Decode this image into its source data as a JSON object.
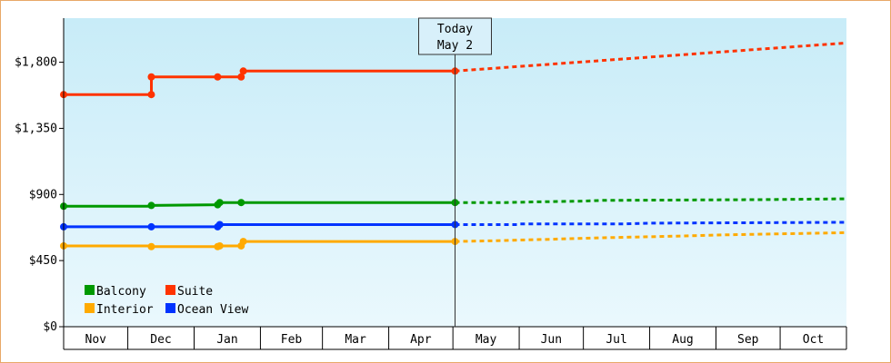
{
  "chart_data": {
    "type": "line",
    "title": "",
    "xlabel": "",
    "ylabel": "",
    "ylim": [
      0,
      2100
    ],
    "yticks": [
      0,
      450,
      900,
      1350,
      1800
    ],
    "ytick_labels": [
      "$0",
      "$450",
      "$900",
      "$1,350",
      "$1,800"
    ],
    "month_labels": [
      "Nov",
      "Dec",
      "Jan",
      "Feb",
      "Mar",
      "Apr",
      "May",
      "Jun",
      "Jul",
      "Aug",
      "Sep",
      "Oct"
    ],
    "x_range": [
      "2023-11-01",
      "2024-10-31"
    ],
    "today": {
      "line1": "Today",
      "line2": "May 2",
      "date": "2024-05-02"
    },
    "series": [
      {
        "name": "Suite",
        "color": "#ff3300",
        "history": [
          [
            "2023-11-01",
            1580
          ],
          [
            "2023-12-12",
            1580
          ],
          [
            "2023-12-12",
            1700
          ],
          [
            "2024-01-12",
            1700
          ],
          [
            "2024-01-23",
            1700
          ],
          [
            "2024-01-24",
            1740
          ],
          [
            "2024-05-02",
            1740
          ]
        ],
        "markers": [
          [
            "2023-11-01",
            1580
          ],
          [
            "2023-12-12",
            1580
          ],
          [
            "2023-12-12",
            1700
          ],
          [
            "2024-01-12",
            1700
          ],
          [
            "2024-01-23",
            1700
          ],
          [
            "2024-01-24",
            1740
          ],
          [
            "2024-05-02",
            1740
          ]
        ],
        "forecast": [
          [
            "2024-05-02",
            1740
          ],
          [
            "2024-10-31",
            1930
          ]
        ]
      },
      {
        "name": "Balcony",
        "color": "#009900",
        "history": [
          [
            "2023-11-01",
            820
          ],
          [
            "2023-12-12",
            820
          ],
          [
            "2023-12-12",
            825
          ],
          [
            "2024-01-12",
            830
          ],
          [
            "2024-01-13",
            845
          ],
          [
            "2024-01-23",
            845
          ],
          [
            "2024-05-02",
            845
          ]
        ],
        "markers": [
          [
            "2023-11-01",
            820
          ],
          [
            "2023-12-12",
            825
          ],
          [
            "2024-01-12",
            830
          ],
          [
            "2024-01-13",
            845
          ],
          [
            "2024-01-23",
            845
          ],
          [
            "2024-05-02",
            845
          ]
        ],
        "forecast": [
          [
            "2024-05-02",
            845
          ],
          [
            "2024-05-25",
            845
          ],
          [
            "2024-06-10",
            850
          ],
          [
            "2024-07-01",
            855
          ],
          [
            "2024-07-10",
            860
          ],
          [
            "2024-08-15",
            862
          ],
          [
            "2024-09-20",
            865
          ],
          [
            "2024-10-31",
            870
          ]
        ]
      },
      {
        "name": "Ocean View",
        "color": "#0033ff",
        "history": [
          [
            "2023-11-01",
            680
          ],
          [
            "2023-12-12",
            680
          ],
          [
            "2024-01-12",
            680
          ],
          [
            "2024-01-13",
            695
          ],
          [
            "2024-05-02",
            695
          ]
        ],
        "markers": [
          [
            "2023-11-01",
            680
          ],
          [
            "2023-12-12",
            680
          ],
          [
            "2024-01-12",
            680
          ],
          [
            "2024-01-13",
            695
          ],
          [
            "2024-05-02",
            695
          ]
        ],
        "forecast": [
          [
            "2024-05-02",
            695
          ],
          [
            "2024-05-31",
            695
          ],
          [
            "2024-06-01",
            700
          ],
          [
            "2024-07-20",
            700
          ],
          [
            "2024-08-01",
            705
          ],
          [
            "2024-10-31",
            710
          ]
        ]
      },
      {
        "name": "Interior",
        "color": "#ffaa00",
        "history": [
          [
            "2023-11-01",
            550
          ],
          [
            "2023-12-12",
            550
          ],
          [
            "2023-12-12",
            545
          ],
          [
            "2024-01-12",
            545
          ],
          [
            "2024-01-13",
            550
          ],
          [
            "2024-01-23",
            550
          ],
          [
            "2024-01-24",
            580
          ],
          [
            "2024-05-02",
            580
          ]
        ],
        "markers": [
          [
            "2023-11-01",
            550
          ],
          [
            "2023-12-12",
            545
          ],
          [
            "2024-01-12",
            545
          ],
          [
            "2024-01-13",
            550
          ],
          [
            "2024-01-23",
            550
          ],
          [
            "2024-01-24",
            580
          ],
          [
            "2024-05-02",
            580
          ]
        ],
        "forecast": [
          [
            "2024-05-02",
            580
          ],
          [
            "2024-05-20",
            585
          ],
          [
            "2024-06-15",
            595
          ],
          [
            "2024-07-10",
            605
          ],
          [
            "2024-08-10",
            615
          ],
          [
            "2024-09-05",
            625
          ],
          [
            "2024-10-31",
            640
          ]
        ]
      }
    ],
    "legend": {
      "placement": "bottom-left",
      "items": [
        {
          "label": "Balcony",
          "color": "#009900"
        },
        {
          "label": "Suite",
          "color": "#ff3300"
        },
        {
          "label": "Interior",
          "color": "#ffaa00"
        },
        {
          "label": "Ocean View",
          "color": "#0033ff"
        }
      ]
    },
    "background": {
      "top": "#c8ecf8",
      "bottom": "#eaf8fd"
    },
    "frame_color": "#e8a868"
  }
}
